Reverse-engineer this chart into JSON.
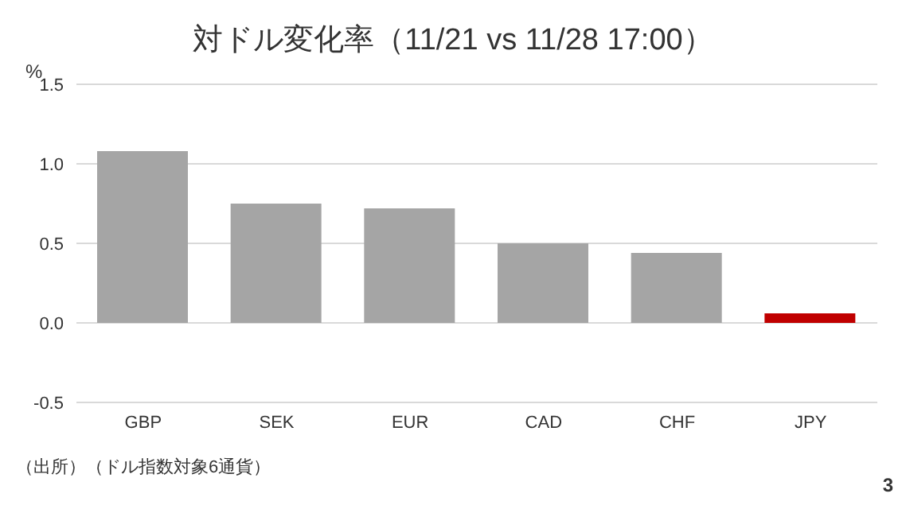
{
  "chart_data": {
    "type": "bar",
    "title": "対ドル変化率（11/21 vs 11/28 17:00）",
    "ylabel": "%",
    "categories": [
      "GBP",
      "SEK",
      "EUR",
      "CAD",
      "CHF",
      "JPY"
    ],
    "values": [
      1.08,
      0.75,
      0.72,
      0.5,
      0.44,
      0.06
    ],
    "colors": [
      "#a5a5a5",
      "#a5a5a5",
      "#a5a5a5",
      "#a5a5a5",
      "#a5a5a5",
      "#c00000"
    ],
    "ylim": [
      -0.5,
      1.5
    ],
    "yticks": [
      {
        "value": -0.5,
        "label": "-0.5"
      },
      {
        "value": 0,
        "label": "0.0"
      },
      {
        "value": 0.5,
        "label": "0.5"
      },
      {
        "value": 1,
        "label": "1.0"
      },
      {
        "value": 1.5,
        "label": "1.5"
      }
    ],
    "grid": "y",
    "annotations": [
      "（出所）（ドル指数対象6通貨）",
      "3"
    ]
  }
}
